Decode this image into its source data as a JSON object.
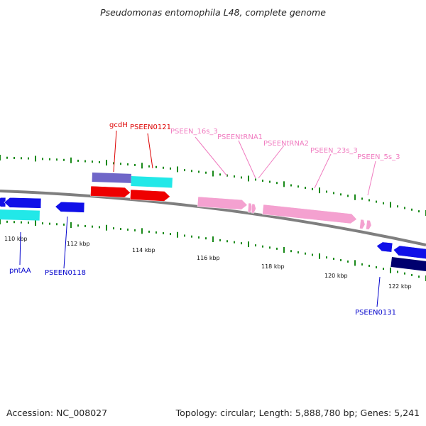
{
  "title": "Pseudomonas entomophila L48, complete genome",
  "footer": {
    "accession": "Accession: NC_008027",
    "topology": "Topology: circular; Length: 5,888,780 bp; Genes: 5,241"
  },
  "colors": {
    "backbone": "#7f7f7f",
    "ticks": "#1a8a1a",
    "tick_label": "#111111",
    "forward_blue": "#1010e8",
    "reverse_red": "#ee0000",
    "cyan": "#22e8e8",
    "purple": "#6f66c8",
    "pink": "#f4a1d0",
    "navy": "#00006e",
    "label_red": "#dd0000",
    "label_blue": "#0000cc",
    "label_pink": "#f07cc0"
  },
  "scale": {
    "tick_labels": [
      "110 kbp",
      "112 kbp",
      "114 kbp",
      "116 kbp",
      "118 kbp",
      "120 kbp",
      "122 kbp"
    ]
  },
  "features": [
    {
      "name": "cyan-forward-feature-left",
      "color": "cyan",
      "strand": "reverse-track",
      "direction": "right"
    },
    {
      "name": "blue-forward-feature-left",
      "color": "forward_blue",
      "direction": "left"
    },
    {
      "name": "pseen0118-feature",
      "color": "forward_blue",
      "direction": "left"
    },
    {
      "name": "gcdh-feature",
      "color": "purple",
      "direction": "none"
    },
    {
      "name": "pseen0121-feature",
      "color": "cyan",
      "direction": "none"
    },
    {
      "name": "red-feature-1",
      "color": "reverse_red",
      "direction": "right"
    },
    {
      "name": "red-feature-2",
      "color": "reverse_red",
      "direction": "right"
    },
    {
      "name": "pseen-16s-feature",
      "color": "pink",
      "direction": "right"
    },
    {
      "name": "trna-feature-1",
      "color": "pink",
      "direction": "right"
    },
    {
      "name": "trna-feature-2",
      "color": "pink",
      "direction": "right"
    },
    {
      "name": "pseen-23s-feature",
      "color": "pink",
      "direction": "right"
    },
    {
      "name": "pseen-5s-feature-1",
      "color": "pink",
      "direction": "right"
    },
    {
      "name": "pseen-5s-feature-2",
      "color": "pink",
      "direction": "right"
    },
    {
      "name": "blue-feature-right-1",
      "color": "forward_blue",
      "direction": "left"
    },
    {
      "name": "blue-feature-right-2",
      "color": "forward_blue",
      "direction": "left"
    },
    {
      "name": "pseen0131-feature",
      "color": "navy",
      "direction": "none"
    }
  ],
  "labels": {
    "gcdH": "gcdH",
    "PSEEN0121": "PSEEN0121",
    "PSEEN_16s_3": "PSEEN_16s_3",
    "PSEENtRNA1": "PSEENtRNA1",
    "PSEENtRNA2": "PSEENtRNA2",
    "PSEEN_23s_3": "PSEEN_23s_3",
    "PSEEN_5s_3": "PSEEN_5s_3",
    "pntAA": "pntAA",
    "PSEEN0118": "PSEEN0118",
    "PSEEN0131": "PSEEN0131"
  }
}
